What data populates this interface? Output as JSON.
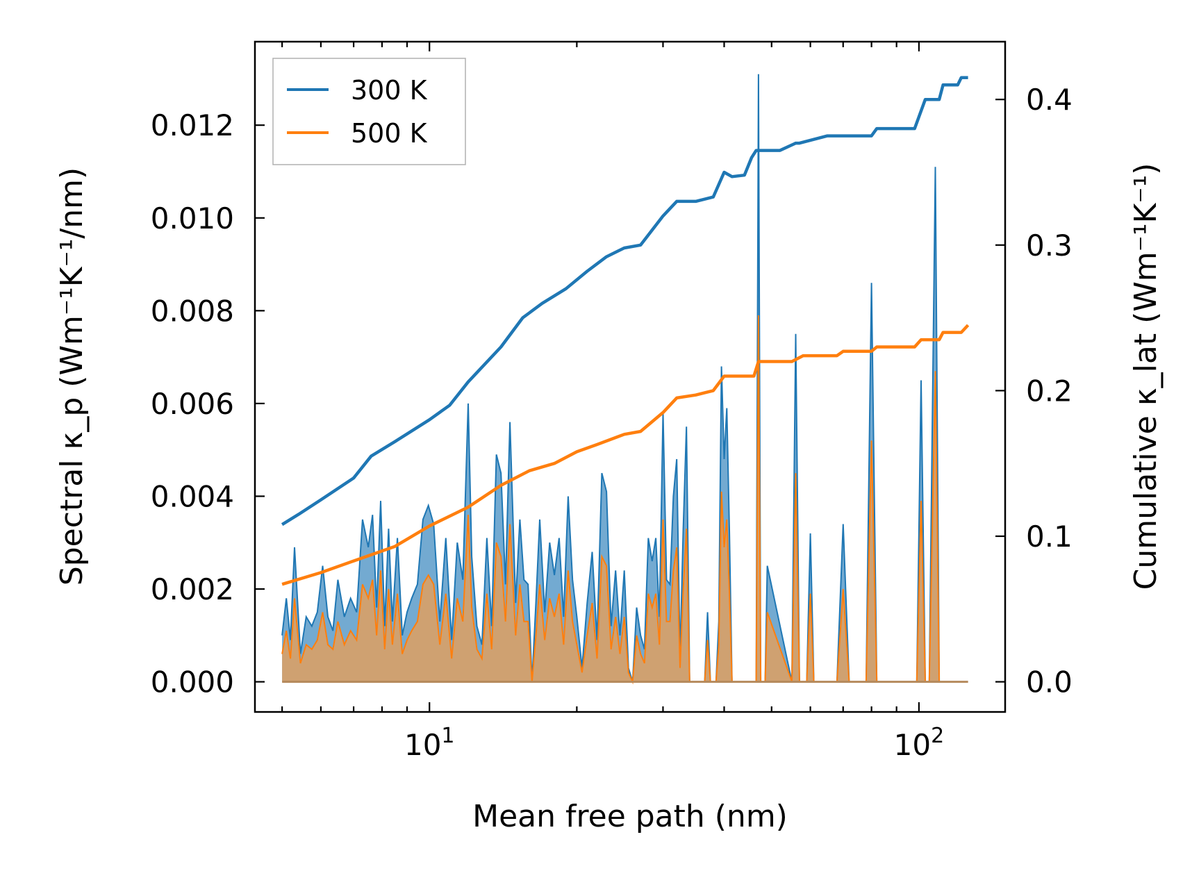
{
  "chart_data": {
    "type": "line",
    "title": "",
    "xlabel": "Mean free path (nm)",
    "ylabel_left": "Spectral κ_p (Wm⁻¹K⁻¹/nm)",
    "ylabel_right": "Cumulative κ_lat (Wm⁻¹K⁻¹)",
    "xscale": "log",
    "xlim": [
      4.4,
      150
    ],
    "ylim_left": [
      -0.00065,
      0.0138
    ],
    "ylim_right": [
      -0.0207,
      0.4397
    ],
    "x_tick_labels": [
      {
        "value": 10,
        "base": "10",
        "exp": "1"
      },
      {
        "value": 100,
        "base": "10",
        "exp": "2"
      }
    ],
    "y_left_ticks": [
      0.0,
      0.002,
      0.004,
      0.006,
      0.008,
      0.01,
      0.012
    ],
    "y_left_tick_labels": [
      "0.000",
      "0.002",
      "0.004",
      "0.006",
      "0.008",
      "0.010",
      "0.012"
    ],
    "y_right_ticks": [
      0.0,
      0.1,
      0.2,
      0.3,
      0.4
    ],
    "y_right_tick_labels": [
      "0.0",
      "0.1",
      "0.2",
      "0.3",
      "0.4"
    ],
    "legend_position": "top-left",
    "legend": [
      "300 K",
      "500 K"
    ],
    "colors": {
      "s300": "#1f77b4",
      "s500": "#ff7f0e",
      "fill300": "#5b9bc9",
      "fill500": "#d9a066"
    },
    "spectral": {
      "x": [
        5.0,
        5.1,
        5.2,
        5.3,
        5.45,
        5.6,
        5.75,
        5.9,
        6.05,
        6.2,
        6.35,
        6.5,
        6.7,
        6.9,
        7.1,
        7.3,
        7.5,
        7.65,
        7.8,
        7.95,
        8.1,
        8.25,
        8.4,
        8.6,
        8.8,
        9.0,
        9.2,
        9.45,
        9.7,
        9.95,
        10.2,
        10.5,
        10.8,
        11.1,
        11.4,
        11.7,
        12.0,
        12.2,
        12.5,
        12.8,
        13.1,
        13.4,
        13.7,
        14.0,
        14.3,
        14.6,
        15.0,
        15.3,
        15.6,
        15.9,
        16.2,
        16.5,
        16.8,
        17.2,
        17.6,
        18.0,
        18.4,
        18.8,
        19.2,
        19.6,
        20.0,
        20.5,
        21.0,
        21.5,
        22.0,
        22.5,
        23.0,
        23.5,
        24.0,
        24.5,
        25.0,
        25.5,
        26.0,
        26.5,
        27.0,
        27.5,
        28.0,
        28.5,
        29.0,
        29.5,
        30.0,
        30.5,
        31.0,
        31.5,
        32.0,
        32.5,
        33.0,
        33.5,
        34.0,
        34.5,
        35.0,
        35.5,
        36.0,
        36.5,
        37.0,
        37.5,
        38.0,
        38.5,
        39.0,
        39.5,
        40.0,
        40.5,
        41.0,
        41.5,
        42.0,
        42.5,
        43.0,
        44.0,
        45.0,
        46.0,
        46.5,
        47.0,
        47.5,
        48.0,
        48.5,
        49.0,
        55.0,
        56.0,
        57.0,
        58.0,
        59.0,
        60.0,
        61.0,
        68.0,
        70.0,
        72.0,
        78.0,
        80.0,
        82.0,
        99.0,
        101.0,
        103.0,
        105.0,
        108.0,
        110.0,
        113.0,
        115.0,
        120.0,
        122.0,
        124.0,
        126.0
      ],
      "k300": [
        0.001,
        0.0018,
        0.0009,
        0.0029,
        0.0006,
        0.0014,
        0.0012,
        0.0015,
        0.0025,
        0.0014,
        0.0011,
        0.0022,
        0.0014,
        0.0018,
        0.0015,
        0.0035,
        0.0029,
        0.0036,
        0.0016,
        0.0039,
        0.0012,
        0.0033,
        0.0013,
        0.0031,
        0.001,
        0.0015,
        0.0018,
        0.0021,
        0.0035,
        0.0038,
        0.0034,
        0.0013,
        0.0031,
        0.0009,
        0.003,
        0.0022,
        0.006,
        0.0027,
        0.0012,
        0.0008,
        0.0031,
        0.0012,
        0.0049,
        0.0045,
        0.0021,
        0.0056,
        0.0017,
        0.0035,
        0.0022,
        0.0021,
        0.0,
        0.0017,
        0.0035,
        0.0015,
        0.003,
        0.0023,
        0.0031,
        0.0014,
        0.004,
        0.0022,
        0.0014,
        0.0003,
        0.0017,
        0.0028,
        0.0009,
        0.0045,
        0.0041,
        0.0012,
        0.0024,
        0.001,
        0.0024,
        0.0003,
        0.0,
        0.0016,
        0.001,
        0.0007,
        0.0031,
        0.0026,
        0.0031,
        0.0014,
        0.0058,
        0.0022,
        0.0021,
        0.004,
        0.0048,
        0.0005,
        0.0033,
        0.0055,
        0.0,
        0.0,
        0.0,
        0.0,
        0.0,
        0.0,
        0.0015,
        0.0,
        0.0,
        0.0,
        0.0013,
        0.0068,
        0.0048,
        0.0059,
        0.0032,
        0.0,
        0.0,
        0.0,
        0.0,
        0.0,
        0.0,
        0.0,
        0.0,
        0.0131,
        0.0,
        0.0,
        0.0,
        0.0025,
        0.0,
        0.0075,
        0.0,
        0.0,
        0.0,
        0.0032,
        0.0,
        0.0,
        0.0034,
        0.0,
        0.0,
        0.0086,
        0.0,
        0.0,
        0.0065,
        0.0,
        0.0,
        0.0111,
        0.0
      ],
      "k500": [
        0.0006,
        0.0011,
        0.0005,
        0.0018,
        0.0004,
        0.0008,
        0.0007,
        0.0009,
        0.0015,
        0.0008,
        0.0007,
        0.0013,
        0.0008,
        0.0011,
        0.0009,
        0.0021,
        0.0018,
        0.0022,
        0.001,
        0.0024,
        0.0007,
        0.002,
        0.0008,
        0.0019,
        0.0006,
        0.0009,
        0.0011,
        0.0013,
        0.0021,
        0.0023,
        0.0021,
        0.0008,
        0.0019,
        0.0005,
        0.0018,
        0.0013,
        0.0036,
        0.0016,
        0.0007,
        0.0005,
        0.0019,
        0.0007,
        0.003,
        0.0027,
        0.0013,
        0.0034,
        0.001,
        0.0021,
        0.0013,
        0.0013,
        0.0,
        0.001,
        0.0021,
        0.0009,
        0.0018,
        0.0014,
        0.0019,
        0.0008,
        0.0024,
        0.0013,
        0.0008,
        0.0002,
        0.001,
        0.0017,
        0.0005,
        0.0027,
        0.0025,
        0.0007,
        0.0014,
        0.0006,
        0.0014,
        0.0002,
        0.0,
        0.001,
        0.0006,
        0.0004,
        0.0019,
        0.0016,
        0.0019,
        0.0008,
        0.0035,
        0.0013,
        0.0013,
        0.0024,
        0.0029,
        0.0003,
        0.002,
        0.0033,
        0.0,
        0.0,
        0.0,
        0.0,
        0.0,
        0.0,
        0.0009,
        0.0,
        0.0,
        0.0,
        0.0008,
        0.0041,
        0.0029,
        0.0035,
        0.0019,
        0.0,
        0.0,
        0.0,
        0.0,
        0.0,
        0.0,
        0.0,
        0.0,
        0.0079,
        0.0,
        0.0,
        0.0,
        0.0015,
        0.0,
        0.0045,
        0.0,
        0.0,
        0.0,
        0.0019,
        0.0,
        0.0,
        0.002,
        0.0,
        0.0,
        0.0052,
        0.0,
        0.0,
        0.0039,
        0.0,
        0.0,
        0.0067,
        0.0
      ]
    },
    "cumulative": {
      "x300": [
        5.0,
        5.4,
        6.0,
        7.0,
        7.6,
        8.5,
        10.0,
        11.0,
        12.0,
        14.0,
        15.5,
        17.0,
        19.0,
        21.0,
        23.0,
        25.0,
        27.0,
        30.0,
        32.0,
        35.0,
        38.0,
        40.0,
        41.5,
        44.0,
        45.5,
        46.5,
        52.0,
        56.0,
        57.0,
        65.0,
        68.0,
        80.0,
        82.0,
        98.0,
        103.0,
        110.0,
        112.0,
        120.0,
        122.0,
        126.0
      ],
      "c300": [
        0.108,
        0.115,
        0.125,
        0.14,
        0.155,
        0.165,
        0.18,
        0.19,
        0.206,
        0.23,
        0.25,
        0.26,
        0.27,
        0.282,
        0.292,
        0.298,
        0.3,
        0.32,
        0.33,
        0.33,
        0.333,
        0.35,
        0.347,
        0.348,
        0.36,
        0.365,
        0.365,
        0.37,
        0.37,
        0.375,
        0.375,
        0.375,
        0.38,
        0.38,
        0.4,
        0.4,
        0.41,
        0.41,
        0.415,
        0.415
      ],
      "x500": [
        5.0,
        6.0,
        7.0,
        8.5,
        10.0,
        12.0,
        14.0,
        16.0,
        18.0,
        20.0,
        22.0,
        25.0,
        27.0,
        30.0,
        32.0,
        35.0,
        38.0,
        40.0,
        41.5,
        46.0,
        47.0,
        55.0,
        58.0,
        68.0,
        70.0,
        80.0,
        82.0,
        98.0,
        101.0,
        110.0,
        112.0,
        122.0,
        126.0
      ],
      "c500": [
        0.067,
        0.075,
        0.083,
        0.093,
        0.107,
        0.12,
        0.135,
        0.145,
        0.15,
        0.158,
        0.163,
        0.17,
        0.172,
        0.185,
        0.195,
        0.197,
        0.2,
        0.21,
        0.21,
        0.21,
        0.22,
        0.22,
        0.224,
        0.224,
        0.227,
        0.227,
        0.23,
        0.23,
        0.235,
        0.235,
        0.24,
        0.24,
        0.245
      ]
    }
  }
}
